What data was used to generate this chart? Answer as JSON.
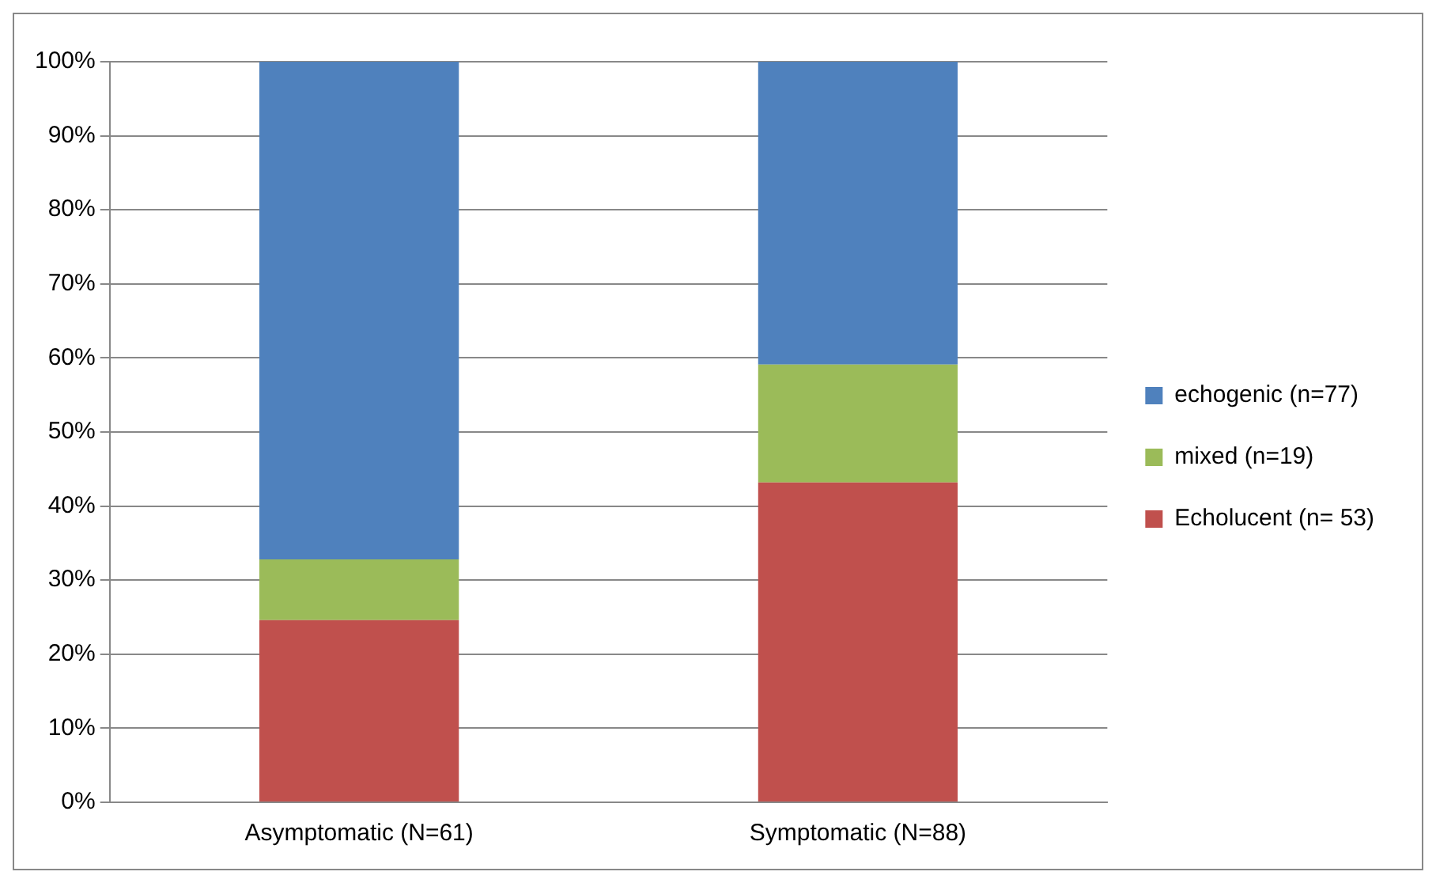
{
  "chart_data": {
    "type": "bar",
    "stacked": true,
    "categories": [
      "Asymptomatic (N=61)",
      "Symptomatic (N=88)"
    ],
    "series": [
      {
        "name": "Echolucent (n= 53)",
        "color": "#c0504d",
        "values": [
          24.6,
          43.2
        ]
      },
      {
        "name": "mixed (n=19)",
        "color": "#9bbb59",
        "values": [
          8.2,
          15.9
        ]
      },
      {
        "name": "echogenic (n=77)",
        "color": "#4f81bd",
        "values": [
          67.2,
          40.9
        ]
      }
    ],
    "ylim": [
      0,
      100
    ],
    "yticks": [
      {
        "value": 0,
        "label": "0%"
      },
      {
        "value": 10,
        "label": "10%"
      },
      {
        "value": 20,
        "label": "20%"
      },
      {
        "value": 30,
        "label": "30%"
      },
      {
        "value": 40,
        "label": "40%"
      },
      {
        "value": 50,
        "label": "50%"
      },
      {
        "value": 60,
        "label": "60%"
      },
      {
        "value": 70,
        "label": "70%"
      },
      {
        "value": 80,
        "label": "80%"
      },
      {
        "value": 90,
        "label": "90%"
      },
      {
        "value": 100,
        "label": "100%"
      }
    ],
    "grid": "y",
    "legend": "right"
  }
}
